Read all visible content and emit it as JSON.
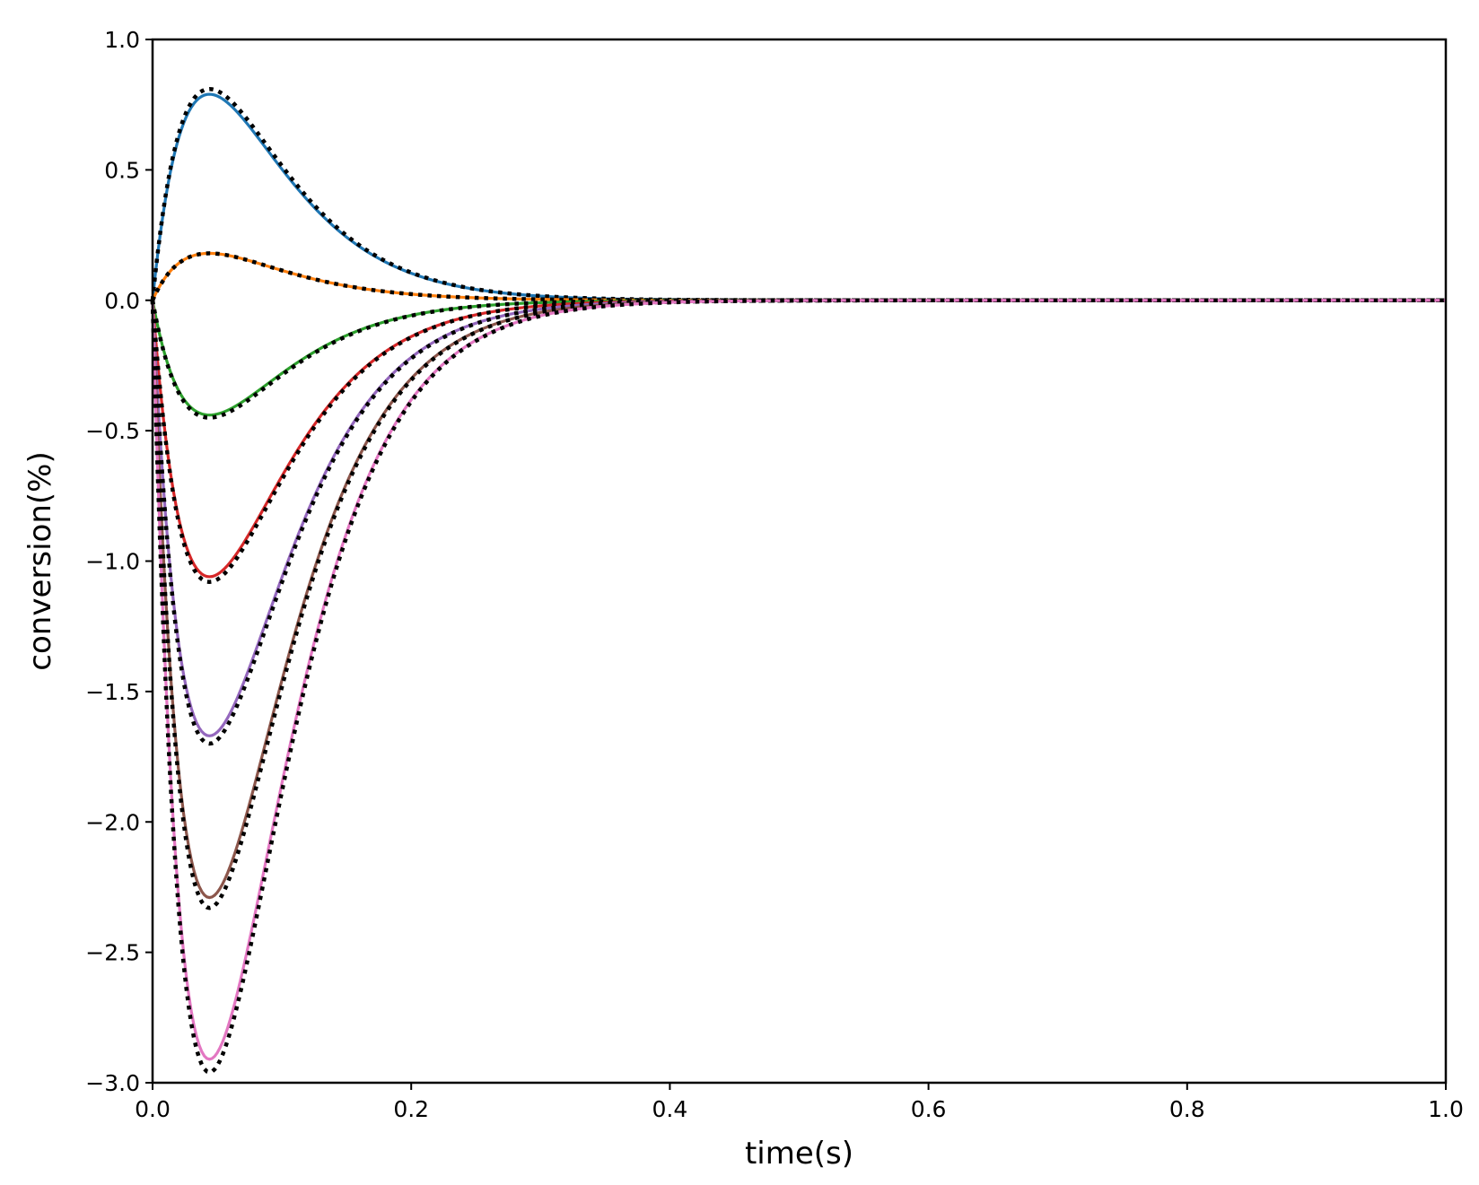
{
  "chart_data": {
    "type": "line",
    "title": "",
    "xlabel": "time(s)",
    "ylabel": "conversion(%)",
    "xlim": [
      0.0,
      1.0
    ],
    "ylim": [
      -3.0,
      1.0
    ],
    "xticks": [
      "0.0",
      "0.2",
      "0.4",
      "0.6",
      "0.8",
      "1.0"
    ],
    "yticks": [
      "1.0",
      "0.5",
      "0.0",
      "−0.5",
      "−1.0",
      "−1.5",
      "−2.0",
      "−2.5",
      "−3.0"
    ],
    "grid": false,
    "legend": "none",
    "peak_time": 0.044,
    "series": [
      {
        "style": "solid",
        "color": "#1f77b4",
        "peak": 0.79
      },
      {
        "style": "dotted",
        "color": "#000000",
        "peak": 0.81
      },
      {
        "style": "solid",
        "color": "#ff7f0e",
        "peak": 0.18
      },
      {
        "style": "dotted",
        "color": "#000000",
        "peak": 0.18
      },
      {
        "style": "solid",
        "color": "#2ca02c",
        "peak": -0.44
      },
      {
        "style": "dotted",
        "color": "#000000",
        "peak": -0.45
      },
      {
        "style": "solid",
        "color": "#d62728",
        "peak": -1.06
      },
      {
        "style": "dotted",
        "color": "#000000",
        "peak": -1.08
      },
      {
        "style": "solid",
        "color": "#9467bd",
        "peak": -1.67
      },
      {
        "style": "dotted",
        "color": "#000000",
        "peak": -1.7
      },
      {
        "style": "solid",
        "color": "#8c564b",
        "peak": -2.29
      },
      {
        "style": "dotted",
        "color": "#000000",
        "peak": -2.33
      },
      {
        "style": "solid",
        "color": "#e377c2",
        "peak": -2.91
      },
      {
        "style": "dotted",
        "color": "#000000",
        "peak": -2.96
      }
    ]
  }
}
